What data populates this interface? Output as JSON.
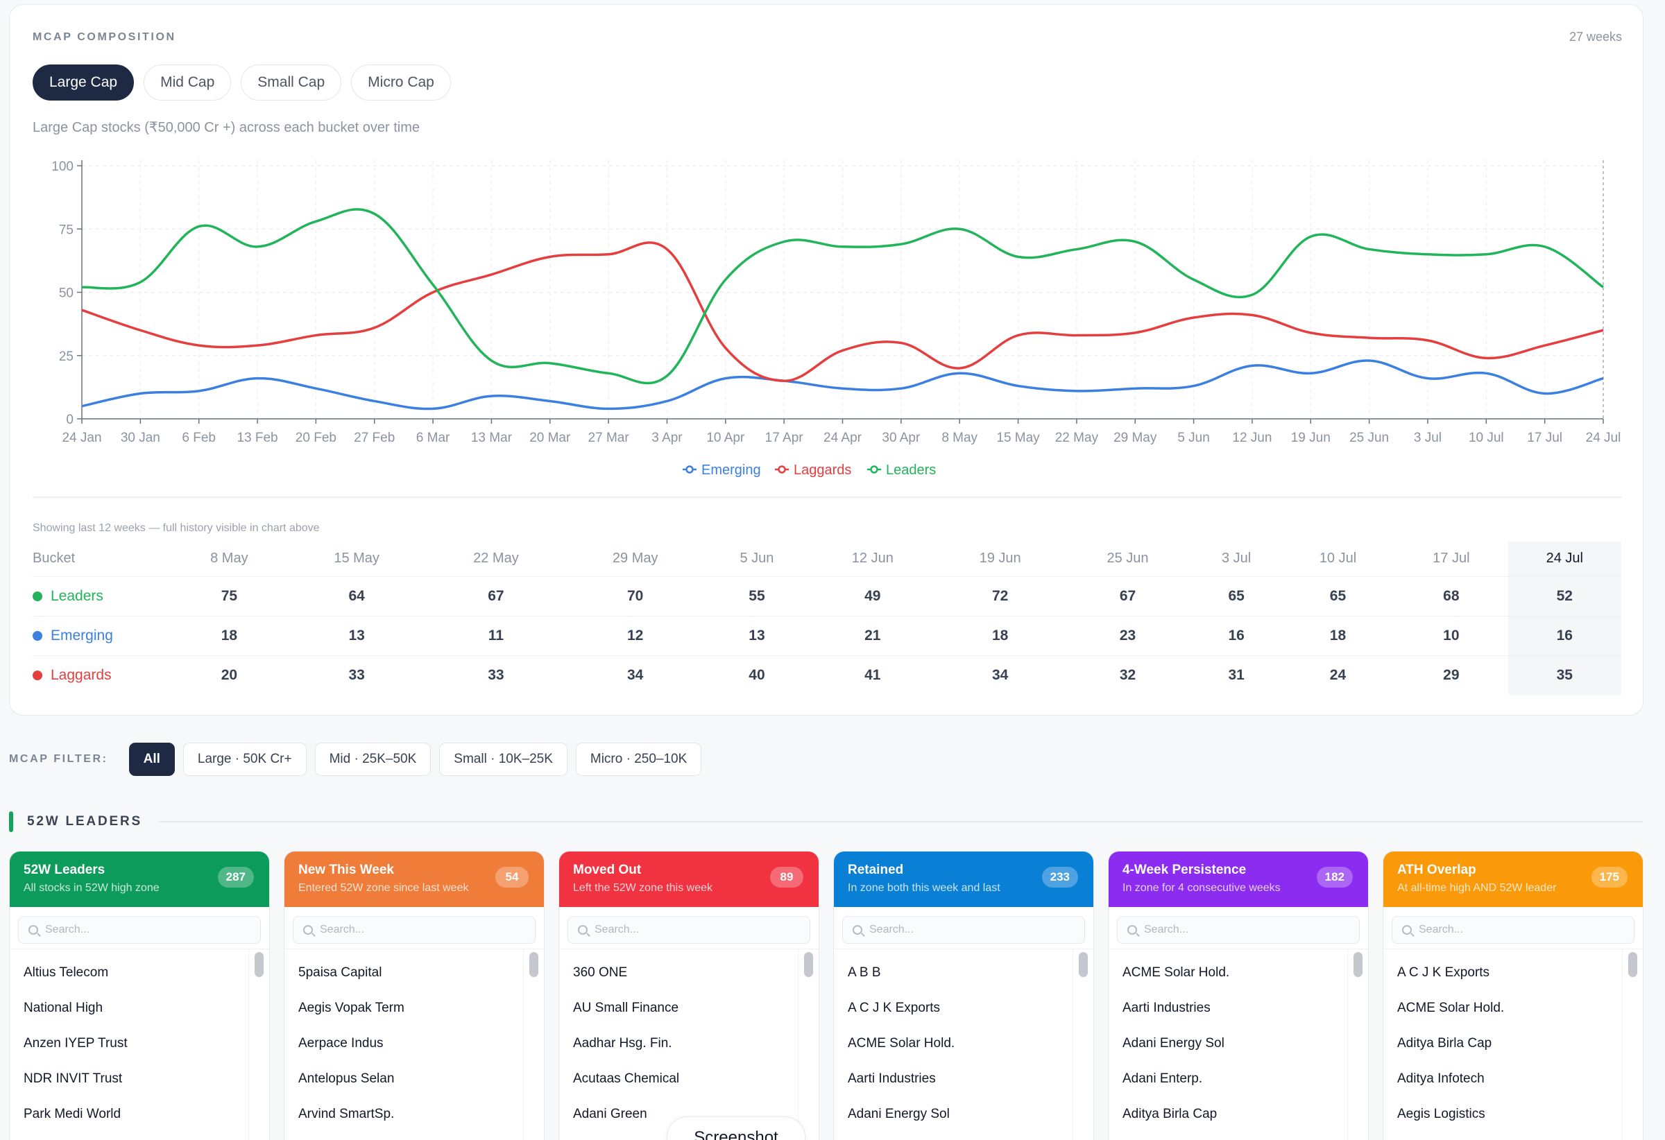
{
  "composition": {
    "section_label": "MCAP COMPOSITION",
    "weeks_label": "27 weeks",
    "tabs": [
      "Large Cap",
      "Mid Cap",
      "Small Cap",
      "Micro Cap"
    ],
    "active_tab": "Large Cap",
    "subtitle": "Large Cap stocks (₹50,000 Cr +) across each bucket over time"
  },
  "chart_data": {
    "type": "line",
    "title": "",
    "xlabel": "",
    "ylabel": "",
    "ylim": [
      0,
      100
    ],
    "yticks": [
      0,
      25,
      50,
      75,
      100
    ],
    "categories": [
      "24 Jan",
      "30 Jan",
      "6 Feb",
      "13 Feb",
      "20 Feb",
      "27 Feb",
      "6 Mar",
      "13 Mar",
      "20 Mar",
      "27 Mar",
      "3 Apr",
      "10 Apr",
      "17 Apr",
      "24 Apr",
      "30 Apr",
      "8 May",
      "15 May",
      "22 May",
      "29 May",
      "5 Jun",
      "12 Jun",
      "19 Jun",
      "25 Jun",
      "3 Jul",
      "10 Jul",
      "17 Jul",
      "24 Jul"
    ],
    "series": [
      {
        "name": "Emerging",
        "color": "#3b7fe0",
        "values": [
          5,
          10,
          11,
          16,
          12,
          7,
          4,
          9,
          7,
          4,
          7,
          16,
          15,
          12,
          12,
          18,
          13,
          11,
          12,
          13,
          21,
          18,
          23,
          16,
          18,
          10,
          16
        ]
      },
      {
        "name": "Laggards",
        "color": "#e53e3e",
        "values": [
          43,
          35,
          29,
          29,
          33,
          36,
          50,
          57,
          64,
          65,
          67,
          28,
          15,
          27,
          30,
          20,
          33,
          33,
          34,
          40,
          41,
          34,
          32,
          31,
          24,
          29,
          35
        ]
      },
      {
        "name": "Leaders",
        "color": "#22b45a",
        "values": [
          52,
          54,
          76,
          68,
          78,
          81,
          53,
          23,
          22,
          18,
          17,
          55,
          70,
          68,
          69,
          75,
          64,
          67,
          70,
          55,
          49,
          72,
          67,
          65,
          65,
          68,
          52
        ]
      }
    ],
    "grid": true,
    "legend_position": "bottom-center"
  },
  "table": {
    "note": "Showing last 12 weeks — full history visible in chart above",
    "header_label": "Bucket",
    "columns": [
      "8 May",
      "15 May",
      "22 May",
      "29 May",
      "5 Jun",
      "12 Jun",
      "19 Jun",
      "25 Jun",
      "3 Jul",
      "10 Jul",
      "17 Jul",
      "24 Jul"
    ],
    "rows": [
      {
        "name": "Leaders",
        "color": "#22b45a",
        "values": [
          "75",
          "64",
          "67",
          "70",
          "55",
          "49",
          "72",
          "67",
          "65",
          "65",
          "68",
          "52"
        ]
      },
      {
        "name": "Emerging",
        "color": "#3b7fe0",
        "values": [
          "18",
          "13",
          "11",
          "12",
          "13",
          "21",
          "18",
          "23",
          "16",
          "18",
          "10",
          "16"
        ]
      },
      {
        "name": "Laggards",
        "color": "#e53e3e",
        "values": [
          "20",
          "33",
          "33",
          "34",
          "40",
          "41",
          "34",
          "32",
          "31",
          "24",
          "29",
          "35"
        ]
      }
    ]
  },
  "filter": {
    "label": "MCAP FILTER:",
    "options": [
      "All",
      "Large · 50K Cr+",
      "Mid · 25K–50K",
      "Small · 10K–25K",
      "Micro · 250–10K"
    ],
    "active": "All"
  },
  "leaders_section": {
    "title": "52W LEADERS"
  },
  "cards": [
    {
      "title": "52W Leaders",
      "subtitle": "All stocks in 52W high zone",
      "count": "287",
      "color": "#0d9b5c",
      "search_placeholder": "Search...",
      "items": [
        "Altius Telecom",
        "National High",
        "Anzen IYEP Trust",
        "NDR INVIT Trust",
        "Park Medi World"
      ]
    },
    {
      "title": "New This Week",
      "subtitle": "Entered 52W zone since last week",
      "count": "54",
      "color": "#f07c3a",
      "search_placeholder": "Search...",
      "items": [
        "5paisa Capital",
        "Aegis Vopak Term",
        "Aerpace Indus",
        "Antelopus Selan",
        "Arvind SmartSp."
      ]
    },
    {
      "title": "Moved Out",
      "subtitle": "Left the 52W zone this week",
      "count": "89",
      "color": "#f03241",
      "search_placeholder": "Search...",
      "items": [
        "360 ONE",
        "AU Small Finance",
        "Aadhar Hsg. Fin.",
        "Acutaas Chemical",
        "Adani Green"
      ]
    },
    {
      "title": "Retained",
      "subtitle": "In zone both this week and last",
      "count": "233",
      "color": "#0a7fd6",
      "search_placeholder": "Search...",
      "items": [
        "A B B",
        "A C J K Exports",
        "ACME Solar Hold.",
        "Aarti Industries",
        "Adani Energy Sol"
      ]
    },
    {
      "title": "4-Week Persistence",
      "subtitle": "In zone for 4 consecutive weeks",
      "count": "182",
      "color": "#8b2cf0",
      "search_placeholder": "Search...",
      "items": [
        "ACME Solar Hold.",
        "Aarti Industries",
        "Adani Energy Sol",
        "Adani Enterp.",
        "Aditya Birla Cap"
      ]
    },
    {
      "title": "ATH Overlap",
      "subtitle": "At all-time high AND 52W leader",
      "count": "175",
      "color": "#fa9a0a",
      "search_placeholder": "Search...",
      "items": [
        "A C J K Exports",
        "ACME Solar Hold.",
        "Aditya Birla Cap",
        "Aditya Infotech",
        "Aegis Logistics"
      ]
    }
  ],
  "screenshot_pill": {
    "label": "Screenshot"
  }
}
